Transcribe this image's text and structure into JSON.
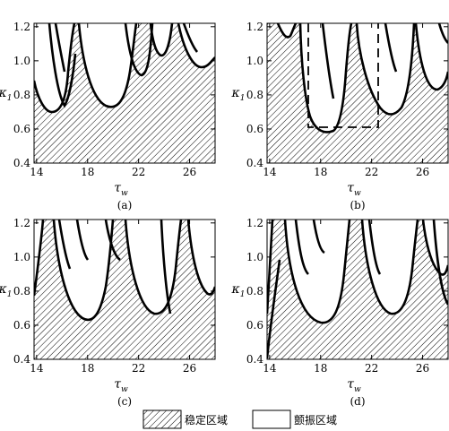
{
  "panels": [
    {
      "id": "a",
      "caption": "(a)"
    },
    {
      "id": "b",
      "caption": "(b)"
    },
    {
      "id": "c",
      "caption": "(c)"
    },
    {
      "id": "d",
      "caption": "(d)"
    }
  ],
  "axes": {
    "x_label_main": "τ",
    "x_label_sub": "w",
    "y_label_main": "κ",
    "y_label_sub": "1",
    "x_ticks": [
      "14",
      "18",
      "22",
      "26"
    ],
    "y_ticks": [
      "0.4",
      "0.6",
      "0.8",
      "1.0",
      "1.2"
    ]
  },
  "legend": {
    "stable_label": "稳定区域",
    "chatter_label": "颤振区域"
  },
  "colors": {
    "line": "#000000",
    "hatch": "#000000",
    "background": "#ffffff"
  }
}
